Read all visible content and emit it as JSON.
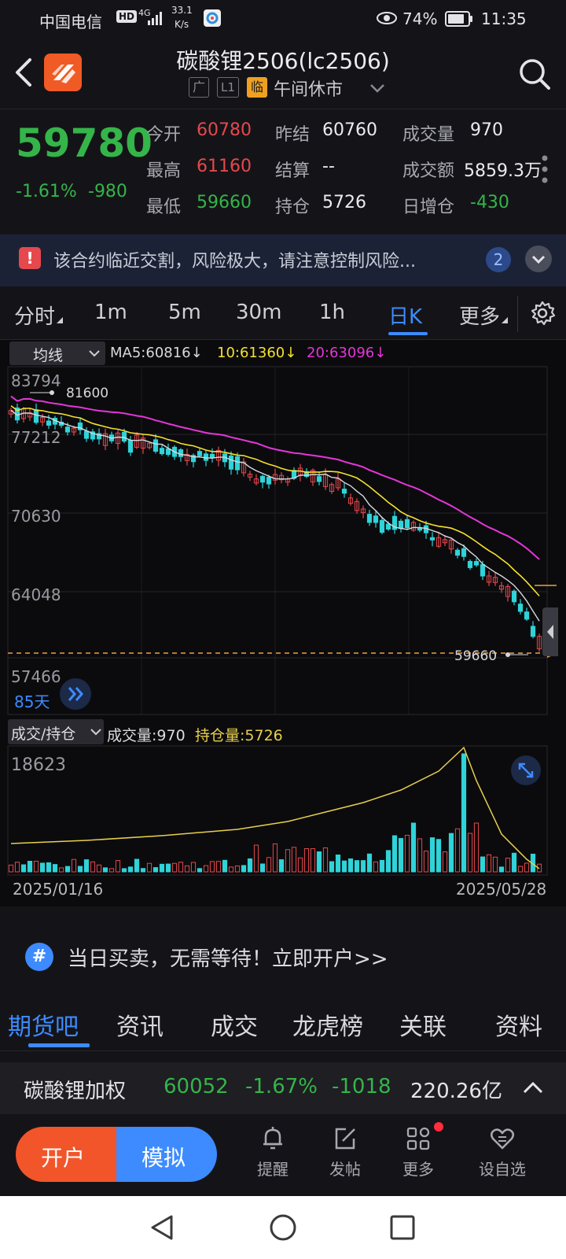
{
  "status_bar": {
    "carrier": "中国电信",
    "hd": "HD",
    "network": "4G",
    "speed_top": "33.1",
    "speed_bottom": "K/s",
    "battery": "74%",
    "time": "11:35"
  },
  "header": {
    "title": "碳酸锂2506(lc2506)",
    "badges": [
      "广",
      "L1",
      "临"
    ],
    "session": "午间休市"
  },
  "quote": {
    "last": "59780",
    "change_pct": "-1.61%",
    "change": "-980",
    "fields": [
      {
        "label": "今开",
        "value": "60780",
        "color": "red"
      },
      {
        "label": "昨结",
        "value": "60760",
        "color": "white"
      },
      {
        "label": "成交量",
        "value": "970",
        "color": "white"
      },
      {
        "label": "最高",
        "value": "61160",
        "color": "red"
      },
      {
        "label": "结算",
        "value": "--",
        "color": "white"
      },
      {
        "label": "成交额",
        "value": "5859.3万",
        "color": "white"
      },
      {
        "label": "最低",
        "value": "59660",
        "color": "green"
      },
      {
        "label": "持仓",
        "value": "5726",
        "color": "white"
      },
      {
        "label": "日增仓",
        "value": "-430",
        "color": "green"
      }
    ]
  },
  "warning": {
    "text": "该合约临近交割，风险极大，请注意控制风险...",
    "count": "2"
  },
  "periods": [
    "分时",
    "1m",
    "5m",
    "30m",
    "1h",
    "日K",
    "更多"
  ],
  "active_period": "日K",
  "chart": {
    "indicator_label": "均线",
    "ma5": "MA5:60816",
    "ma10": "10:61360",
    "ma20": "20:63096",
    "price_ticks": [
      "83794",
      "77212",
      "70630",
      "64048",
      "57466"
    ],
    "max_marker": "81600",
    "min_marker": "59660",
    "days": "85天",
    "volume_selector": "成交/持仓",
    "volume_label": "成交量:970",
    "oi_label": "持仓量:5726",
    "volume_top": "18623",
    "date_start": "2025/01/16",
    "date_end": "2025/05/28",
    "colors": {
      "up": "#e5484d",
      "down": "#2fd3d8",
      "ma5": "#d9d9dd",
      "ma10": "#f5e02e",
      "ma20": "#e535d8",
      "oi": "#e8cf4c"
    }
  },
  "promo": {
    "text": "当日买卖，无需等待！立即开户>>"
  },
  "tabs": [
    "期货吧",
    "资讯",
    "成交",
    "龙虎榜",
    "关联",
    "资料"
  ],
  "active_tab": "期货吧",
  "index": {
    "name": "碳酸锂加权",
    "price": "60052",
    "change_pct": "-1.67%",
    "change": "-1018",
    "amount": "220.26亿"
  },
  "actions": {
    "open_account": "开户",
    "simulate": "模拟",
    "items": [
      {
        "label": "提醒",
        "icon": "bell-icon"
      },
      {
        "label": "发帖",
        "icon": "edit-icon"
      },
      {
        "label": "更多",
        "icon": "grid-icon"
      },
      {
        "label": "设自选",
        "icon": "heart-icon"
      }
    ]
  }
}
